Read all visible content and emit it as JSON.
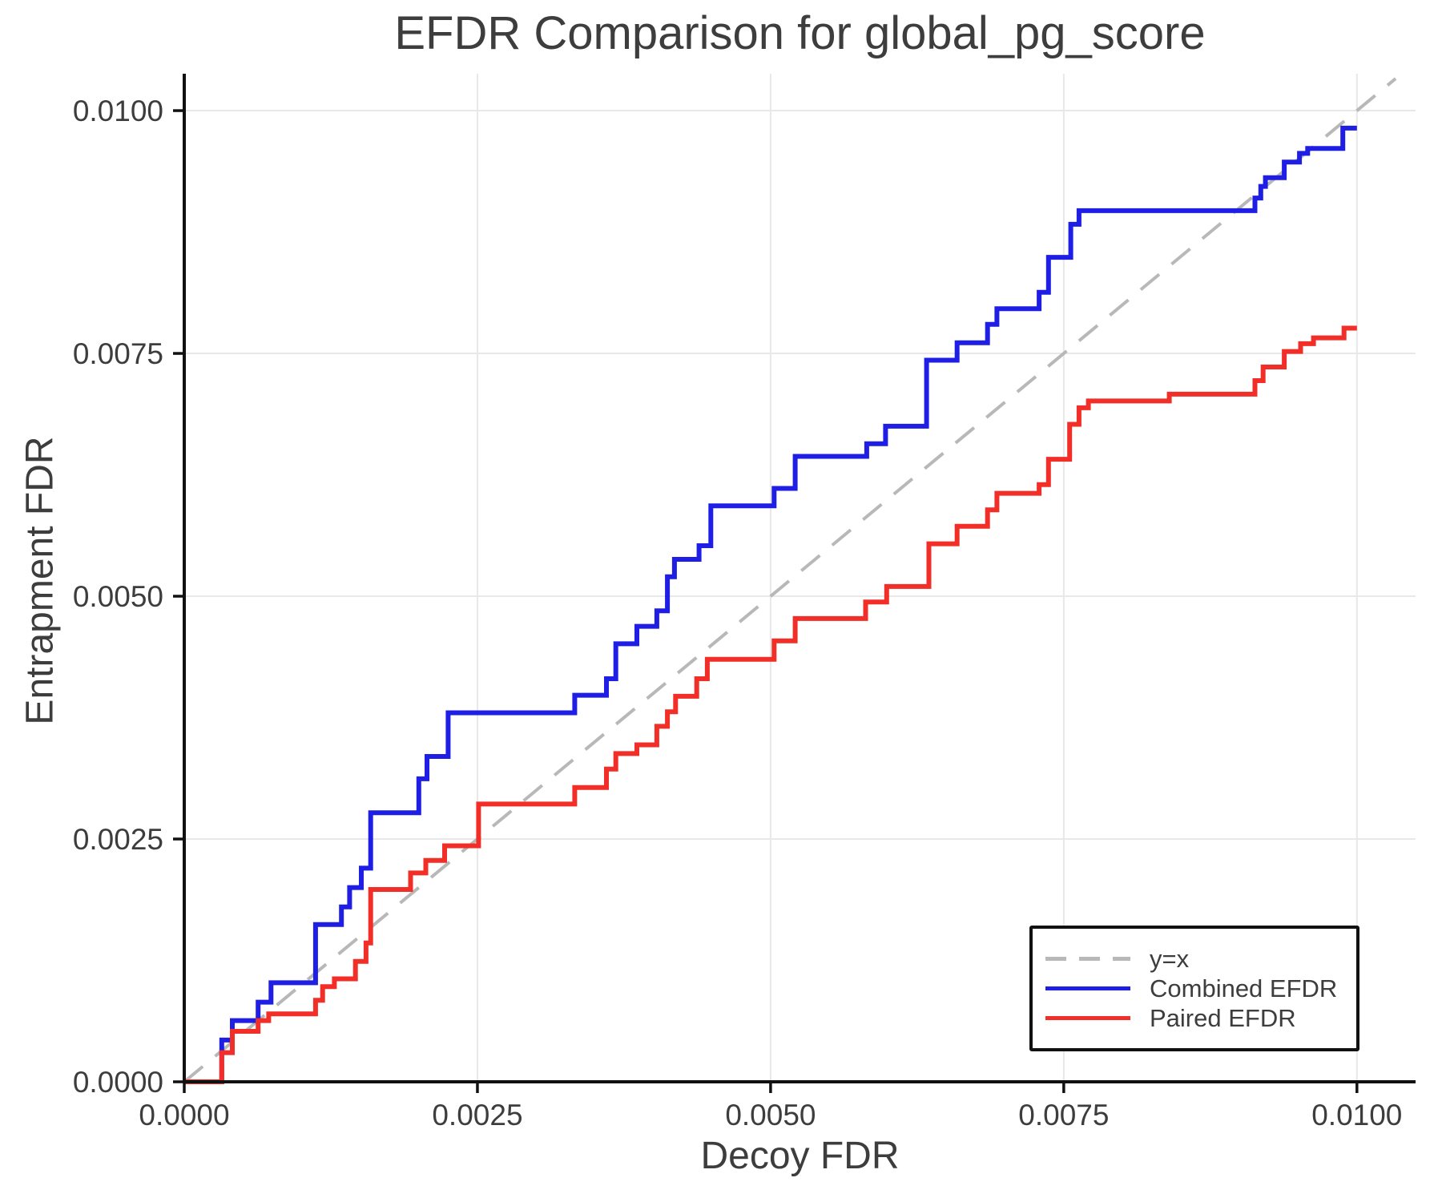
{
  "chart_data": {
    "type": "line",
    "subtype": "step-efdr-comparison",
    "title": "EFDR Comparison for global_pg_score",
    "xlabel": "Decoy FDR",
    "ylabel": "Entrapment FDR",
    "xlim": [
      0,
      0.0105
    ],
    "ylim": [
      0,
      0.01038
    ],
    "grid": true,
    "grid_color": "#e8e8e8",
    "axis_color": "#111111",
    "text_color": "#3d3d3d",
    "x_ticks": {
      "values": [
        0.0,
        0.0025,
        0.005,
        0.0075,
        0.01
      ],
      "labels": [
        "0.0000",
        "0.0025",
        "0.0050",
        "0.0075",
        "0.0100"
      ]
    },
    "y_ticks": {
      "values": [
        0.0,
        0.0025,
        0.005,
        0.0075,
        0.01
      ],
      "labels": [
        "0.0000",
        "0.0025",
        "0.0050",
        "0.0075",
        "0.0100"
      ]
    },
    "legend": {
      "position": "lower right",
      "entries": [
        {
          "label": "y=x",
          "color": "#b8b8b8",
          "dash": true
        },
        {
          "label": "Combined EFDR",
          "color": "#1e1ee4",
          "dash": false
        },
        {
          "label": "Paired EFDR",
          "color": "#f12e27",
          "dash": false
        }
      ]
    },
    "series": [
      {
        "name": "y=x",
        "style": "dashed",
        "color": "#b8b8b8",
        "width": 4,
        "points": [
          [
            0,
            0
          ],
          [
            0.01033,
            0.01033
          ]
        ]
      },
      {
        "name": "Combined EFDR",
        "style": "step",
        "color": "#1e1ee4",
        "width": 6,
        "start": [
          0,
          0
        ],
        "end_x": 0.01,
        "steps": [
          [
            0.00032,
            0.00043
          ],
          [
            0.00041,
            0.00063
          ],
          [
            0.00063,
            0.00082
          ],
          [
            0.00074,
            0.00102
          ],
          [
            0.00112,
            0.00162
          ],
          [
            0.00134,
            0.0018
          ],
          [
            0.00141,
            0.002
          ],
          [
            0.00151,
            0.0022
          ],
          [
            0.00159,
            0.00277
          ],
          [
            0.002,
            0.00312
          ],
          [
            0.00207,
            0.00335
          ],
          [
            0.00225,
            0.0038
          ],
          [
            0.00333,
            0.00398
          ],
          [
            0.0036,
            0.00415
          ],
          [
            0.00368,
            0.00451
          ],
          [
            0.00386,
            0.00469
          ],
          [
            0.00403,
            0.00485
          ],
          [
            0.00412,
            0.0052
          ],
          [
            0.00418,
            0.00538
          ],
          [
            0.00439,
            0.00552
          ],
          [
            0.00449,
            0.00593
          ],
          [
            0.00503,
            0.00611
          ],
          [
            0.00521,
            0.00644
          ],
          [
            0.00582,
            0.00657
          ],
          [
            0.00598,
            0.00675
          ],
          [
            0.00633,
            0.00743
          ],
          [
            0.00659,
            0.00761
          ],
          [
            0.00685,
            0.0078
          ],
          [
            0.00693,
            0.00796
          ],
          [
            0.00729,
            0.00813
          ],
          [
            0.00737,
            0.00849
          ],
          [
            0.00756,
            0.00883
          ],
          [
            0.00763,
            0.00897
          ],
          [
            0.00913,
            0.0091
          ],
          [
            0.00918,
            0.00922
          ],
          [
            0.00922,
            0.00931
          ],
          [
            0.00938,
            0.00947
          ],
          [
            0.00951,
            0.00956
          ],
          [
            0.00958,
            0.00961
          ],
          [
            0.00988,
            0.00982
          ]
        ]
      },
      {
        "name": "Paired EFDR",
        "style": "step",
        "color": "#f12e27",
        "width": 6,
        "start": [
          0,
          0
        ],
        "end_x": 0.01,
        "steps": [
          [
            0.00032,
            0.0003
          ],
          [
            0.00041,
            0.00052
          ],
          [
            0.00063,
            0.00063
          ],
          [
            0.00072,
            0.0007
          ],
          [
            0.00112,
            0.00084
          ],
          [
            0.00118,
            0.00098
          ],
          [
            0.00128,
            0.00106
          ],
          [
            0.00146,
            0.00124
          ],
          [
            0.00155,
            0.00143
          ],
          [
            0.00159,
            0.00198
          ],
          [
            0.00193,
            0.00215
          ],
          [
            0.00206,
            0.00228
          ],
          [
            0.00222,
            0.00243
          ],
          [
            0.00251,
            0.00286
          ],
          [
            0.00333,
            0.00303
          ],
          [
            0.0036,
            0.00322
          ],
          [
            0.00368,
            0.00338
          ],
          [
            0.00386,
            0.00347
          ],
          [
            0.00403,
            0.00366
          ],
          [
            0.00412,
            0.00381
          ],
          [
            0.00419,
            0.00397
          ],
          [
            0.00437,
            0.00415
          ],
          [
            0.00446,
            0.00435
          ],
          [
            0.00503,
            0.00454
          ],
          [
            0.00521,
            0.00477
          ],
          [
            0.00581,
            0.00494
          ],
          [
            0.00599,
            0.0051
          ],
          [
            0.00635,
            0.00554
          ],
          [
            0.00659,
            0.00572
          ],
          [
            0.00685,
            0.00589
          ],
          [
            0.00693,
            0.00606
          ],
          [
            0.00729,
            0.00615
          ],
          [
            0.00737,
            0.00641
          ],
          [
            0.00755,
            0.00677
          ],
          [
            0.00763,
            0.00694
          ],
          [
            0.00771,
            0.00701
          ],
          [
            0.0084,
            0.00708
          ],
          [
            0.00913,
            0.00722
          ],
          [
            0.0092,
            0.00736
          ],
          [
            0.00938,
            0.00752
          ],
          [
            0.00952,
            0.0076
          ],
          [
            0.00963,
            0.00766
          ],
          [
            0.00989,
            0.00776
          ]
        ]
      }
    ]
  }
}
